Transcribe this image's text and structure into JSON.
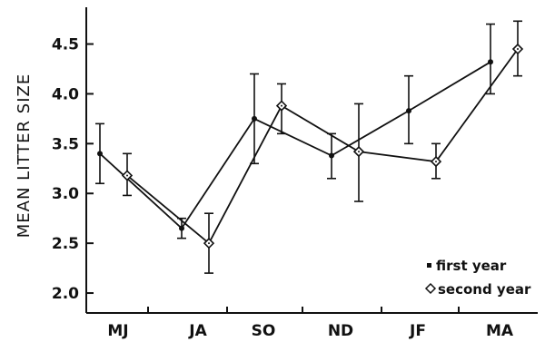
{
  "chart_data": {
    "type": "scatter",
    "title": "",
    "xlabel": "",
    "ylabel": "MEAN LITTER SIZE",
    "categories": [
      "MJ",
      "JA",
      "SO",
      "ND",
      "JF",
      "MA"
    ],
    "y_ticks": [
      "2.0",
      "2.5",
      "3.0",
      "3.5",
      "4.0",
      "4.5"
    ],
    "ylim": [
      1.8,
      4.7
    ],
    "grid": false,
    "legend_position": "bottom-right",
    "series": [
      {
        "name": "first year",
        "marker": "dot",
        "connected": true,
        "points": [
          {
            "x": "MJ",
            "y": 3.4,
            "low": 3.1,
            "high": 3.7
          },
          {
            "x": "JA",
            "y": 2.65,
            "low": 2.55,
            "high": 2.75
          },
          {
            "x": "SO",
            "y": 3.75,
            "low": 3.3,
            "high": 4.2
          },
          {
            "x": "ND",
            "y": 3.38,
            "low": 3.15,
            "high": 3.6
          },
          {
            "x": "JF",
            "y": 3.83,
            "low": 3.5,
            "high": 4.18
          },
          {
            "x": "MA",
            "y": 4.32,
            "low": 4.0,
            "high": 4.7
          }
        ]
      },
      {
        "name": "second year",
        "marker": "diamond",
        "connected": true,
        "points": [
          {
            "x": "MJ",
            "y": 3.18,
            "low": 2.98,
            "high": 3.4
          },
          {
            "x": "JA",
            "y": 2.5,
            "low": 2.2,
            "high": 2.8
          },
          {
            "x": "SO",
            "y": 3.88,
            "low": 3.6,
            "high": 4.1
          },
          {
            "x": "ND",
            "y": 3.42,
            "low": 2.92,
            "high": 3.9
          },
          {
            "x": "JF",
            "y": 3.32,
            "low": 3.15,
            "high": 3.5
          },
          {
            "x": "MA",
            "y": 4.45,
            "low": 4.18,
            "high": 4.73
          }
        ]
      }
    ],
    "legend": [
      "first year",
      "second year"
    ],
    "colors": {
      "ink": "#111111",
      "background": "#ffffff"
    }
  }
}
